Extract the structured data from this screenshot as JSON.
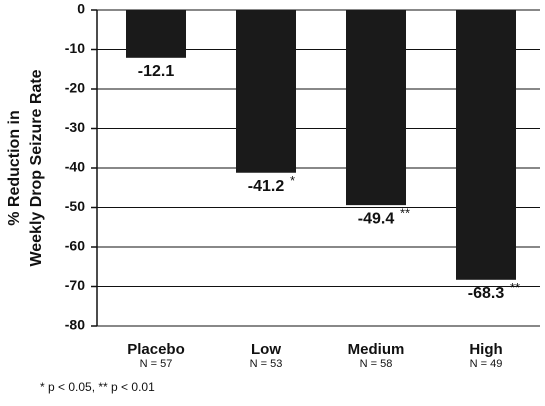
{
  "chart_data": {
    "type": "bar",
    "ylabel": [
      "% Reduction in",
      "Weekly Drop Seizure Rate"
    ],
    "categories": [
      "Placebo",
      "Low",
      "Medium",
      "High"
    ],
    "category_notes": [
      "N = 57",
      "N = 53",
      "N = 58",
      "N = 49"
    ],
    "values": [
      -12.1,
      -41.2,
      -49.4,
      -68.3
    ],
    "significance": [
      null,
      "*",
      "**",
      "**"
    ],
    "color": "#1a1a1a",
    "ylim": [
      0,
      -80
    ],
    "yticks": [
      0,
      -10,
      -20,
      -30,
      -40,
      -50,
      -60,
      -70,
      -80
    ],
    "grid": true,
    "footnote": "* p < 0.05, ** p < 0.01"
  }
}
